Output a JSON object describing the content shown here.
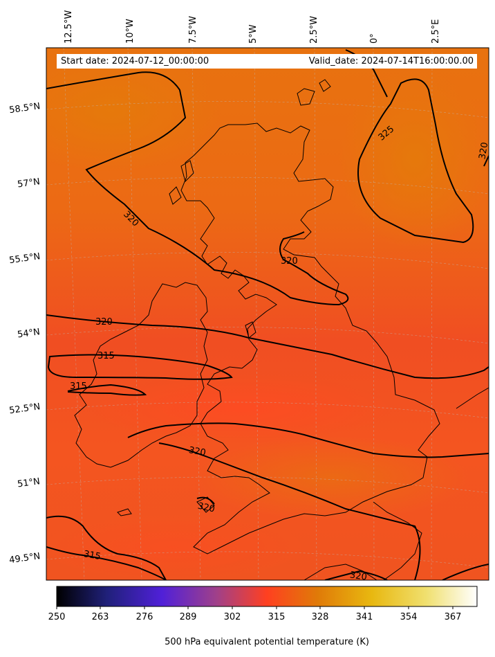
{
  "header": {
    "start_date": "Start date: 2024-07-12_00:00:00",
    "valid_date": "Valid_date: 2024-07-14T16:00:00.00"
  },
  "longitude_labels": [
    "12.5°W",
    "10°W",
    "7.5°W",
    "5°W",
    "2.5°W",
    "0°",
    "2.5°E"
  ],
  "latitude_labels": [
    "58.5°N",
    "57°N",
    "55.5°N",
    "54°N",
    "52.5°N",
    "51°N",
    "49.5°N"
  ],
  "contour_labels": [
    "325",
    "320",
    "320",
    "320",
    "320",
    "315",
    "315",
    "320",
    "320",
    "315",
    "320"
  ],
  "colorbar": {
    "label": "500 hPa equivalent potential temperature (K)",
    "ticks": [
      "250",
      "263",
      "276",
      "289",
      "302",
      "315",
      "328",
      "341",
      "354",
      "367"
    ],
    "colormap": "gnuplot2-like (black-blue-purple-red-orange-yellow-white)"
  },
  "colors": {
    "field_main": "#f05a20",
    "field_warm": "#e87a10",
    "contour": "#000000"
  }
}
